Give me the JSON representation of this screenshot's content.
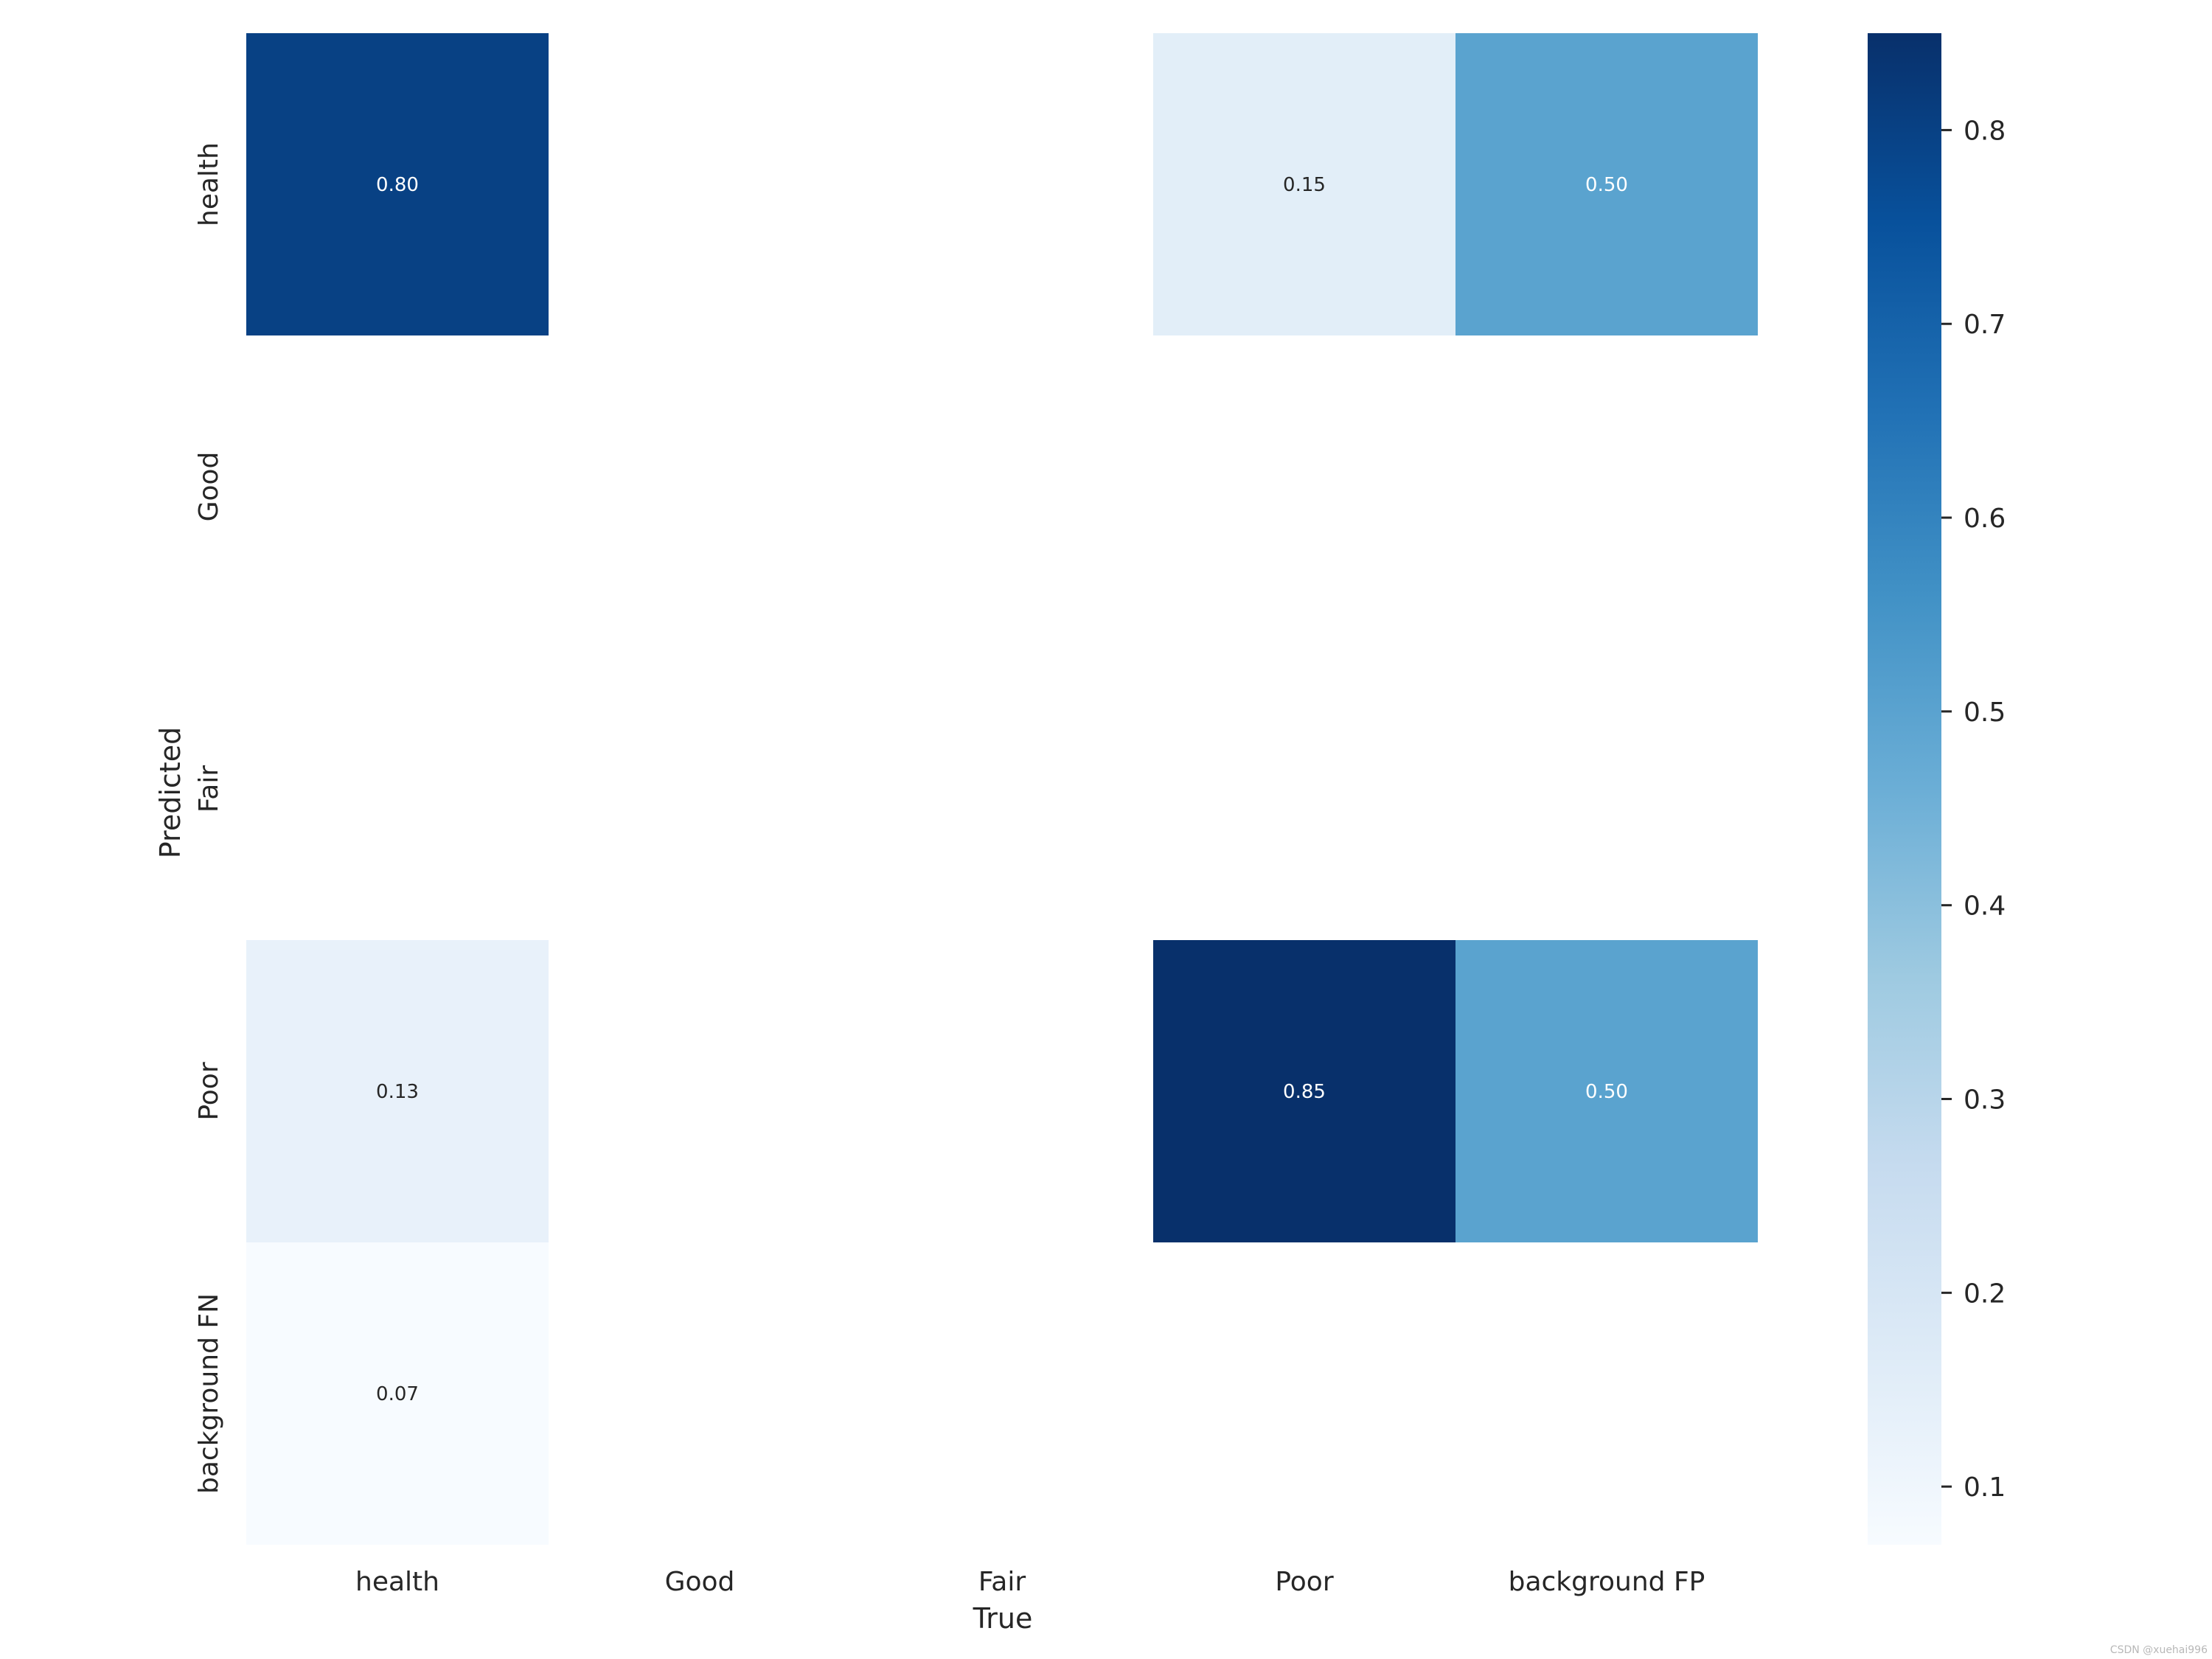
{
  "chart_data": {
    "type": "heatmap",
    "xlabel": "True",
    "ylabel": "Predicted",
    "x_categories": [
      "health",
      "Good",
      "Fair",
      "Poor",
      "background FP"
    ],
    "y_categories": [
      "health",
      "Good",
      "Fair",
      "Poor",
      "background FN"
    ],
    "values": [
      [
        0.8,
        null,
        null,
        0.15,
        0.5
      ],
      [
        null,
        null,
        null,
        null,
        null
      ],
      [
        null,
        null,
        null,
        null,
        null
      ],
      [
        0.13,
        null,
        null,
        0.85,
        0.5
      ],
      [
        0.07,
        null,
        null,
        null,
        null
      ]
    ],
    "value_labels": [
      [
        "0.80",
        "",
        "",
        "0.15",
        "0.50"
      ],
      [
        "",
        "",
        "",
        "",
        ""
      ],
      [
        "",
        "",
        "",
        "",
        ""
      ],
      [
        "0.13",
        "",
        "",
        "0.85",
        "0.50"
      ],
      [
        "0.07",
        "",
        "",
        "",
        ""
      ]
    ],
    "colormap": "Blues",
    "color_range": [
      0.07,
      0.85
    ],
    "colorbar_ticks": [
      0.1,
      0.2,
      0.3,
      0.4,
      0.5,
      0.6,
      0.7,
      0.8
    ],
    "colorbar_tick_labels": [
      "0.1",
      "0.2",
      "0.3",
      "0.4",
      "0.5",
      "0.6",
      "0.7",
      "0.8"
    ],
    "colorbar_position": "right",
    "grid": false
  },
  "watermark": "CSDN @xuehai996"
}
